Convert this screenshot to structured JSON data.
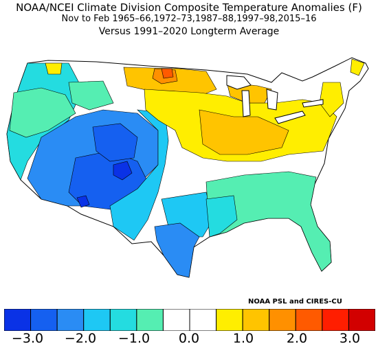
{
  "titles": {
    "line1": "NOAA/NCEI Climate Division Composite Temperature Anomalies (F)",
    "line2": "Nov to Feb  1965–66,1972–73,1987–88,1997–98,2015–16",
    "line3": "Versus 1991–2020 Longterm Average"
  },
  "credit": "NOAA PSL and CIRES-CU",
  "colorbar": {
    "bins": [
      {
        "min": -3.5,
        "max": -3.0,
        "color": "#0a32e6"
      },
      {
        "min": -3.0,
        "max": -2.5,
        "color": "#1560f0"
      },
      {
        "min": -2.5,
        "max": -2.0,
        "color": "#2a8cf4"
      },
      {
        "min": -2.0,
        "max": -1.5,
        "color": "#1ec8f4"
      },
      {
        "min": -1.5,
        "max": -1.0,
        "color": "#24dce0"
      },
      {
        "min": -1.0,
        "max": -0.5,
        "color": "#55eeb2"
      },
      {
        "min": -0.5,
        "max": 0.0,
        "color": "#ffffff"
      },
      {
        "min": 0.0,
        "max": 0.5,
        "color": "#ffffff"
      },
      {
        "min": 0.5,
        "max": 1.0,
        "color": "#ffee00"
      },
      {
        "min": 1.0,
        "max": 1.5,
        "color": "#ffc400"
      },
      {
        "min": 1.5,
        "max": 2.0,
        "color": "#ff9000"
      },
      {
        "min": 2.0,
        "max": 2.5,
        "color": "#ff5a00"
      },
      {
        "min": 2.5,
        "max": 3.0,
        "color": "#ff1e00"
      },
      {
        "min": 3.0,
        "max": 3.5,
        "color": "#d20000"
      }
    ],
    "ticks": [
      "−3.0",
      "−2.0",
      "−1.0",
      "0.0",
      "1.0",
      "2.0",
      "3.0"
    ]
  }
}
